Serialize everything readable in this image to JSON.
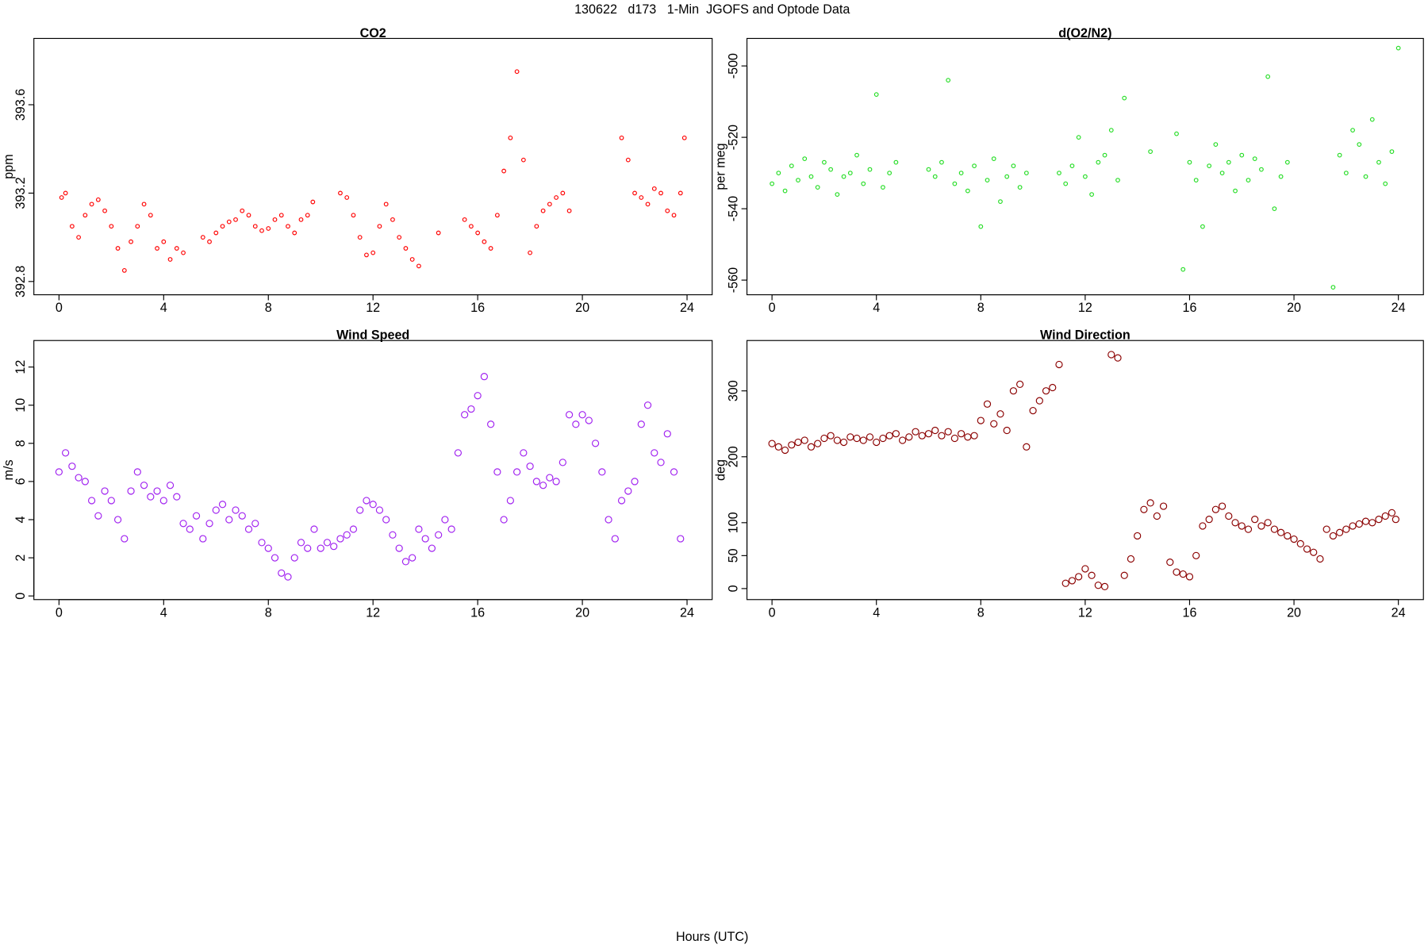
{
  "title": "130622   d173   1-Min  JGOFS and Optode Data",
  "x_label": "Hours (UTC)",
  "chart_data": [
    {
      "type": "scatter",
      "title": "CO2",
      "y_label": "ppm",
      "color": "#ff0000",
      "marker_size": 2,
      "xlim": [
        -0.96,
        24.96
      ],
      "xticks": [
        0,
        4,
        8,
        12,
        16,
        20,
        24
      ],
      "ylim": [
        392.74,
        393.9
      ],
      "yticks": [
        392.8,
        393.2,
        393.6
      ],
      "x": [
        0.1,
        0.25,
        0.5,
        0.75,
        1,
        1.25,
        1.5,
        1.75,
        2,
        2.25,
        2.5,
        2.75,
        3,
        3.25,
        3.5,
        3.75,
        4,
        4.25,
        4.5,
        4.75,
        5.5,
        5.75,
        6,
        6.25,
        6.5,
        6.75,
        7,
        7.25,
        7.5,
        7.75,
        8,
        8.25,
        8.5,
        8.75,
        9,
        9.25,
        9.5,
        9.7,
        10.75,
        11,
        11.25,
        11.5,
        11.75,
        12,
        12.25,
        12.5,
        12.75,
        13,
        13.25,
        13.5,
        13.75,
        14.5,
        15.5,
        15.75,
        16,
        16.25,
        16.5,
        16.75,
        17,
        17.25,
        17.5,
        17.75,
        18,
        18.25,
        18.5,
        18.75,
        19,
        19.25,
        19.5,
        21.5,
        21.75,
        22,
        22.25,
        22.5,
        22.75,
        23,
        23.25,
        23.5,
        23.75,
        23.9
      ],
      "y": [
        393.18,
        393.2,
        393.05,
        393.0,
        393.1,
        393.15,
        393.17,
        393.12,
        393.05,
        392.95,
        392.85,
        392.98,
        393.05,
        393.15,
        393.1,
        392.95,
        392.98,
        392.9,
        392.95,
        392.93,
        393.0,
        392.98,
        393.02,
        393.05,
        393.07,
        393.08,
        393.12,
        393.1,
        393.05,
        393.03,
        393.04,
        393.08,
        393.1,
        393.05,
        393.02,
        393.08,
        393.1,
        393.16,
        393.2,
        393.18,
        393.1,
        393.0,
        392.92,
        392.93,
        393.05,
        393.15,
        393.08,
        393.0,
        392.95,
        392.9,
        392.87,
        393.02,
        393.08,
        393.05,
        393.02,
        392.98,
        392.95,
        393.1,
        393.3,
        393.45,
        393.75,
        393.35,
        392.93,
        393.05,
        393.12,
        393.15,
        393.18,
        393.2,
        393.12,
        393.45,
        393.35,
        393.2,
        393.18,
        393.15,
        393.22,
        393.2,
        393.12,
        393.1,
        393.2,
        393.45
      ]
    },
    {
      "type": "scatter",
      "title": "d(O2/N2)",
      "y_label": "per meg",
      "color": "#22dd22",
      "marker_size": 2,
      "xlim": [
        -0.96,
        24.96
      ],
      "xticks": [
        0,
        4,
        8,
        12,
        16,
        20,
        24
      ],
      "ylim": [
        -564.1,
        -492.3
      ],
      "yticks": [
        -500,
        -520,
        -540,
        -560
      ],
      "x": [
        0,
        0.25,
        0.5,
        0.75,
        1,
        1.25,
        1.5,
        1.75,
        2,
        2.25,
        2.5,
        2.75,
        3,
        3.25,
        3.5,
        3.75,
        4,
        4.25,
        4.5,
        4.75,
        6,
        6.25,
        6.5,
        6.75,
        7,
        7.25,
        7.5,
        7.75,
        8,
        8.25,
        8.5,
        8.75,
        9,
        9.25,
        9.5,
        9.75,
        11,
        11.25,
        11.5,
        11.75,
        12,
        12.25,
        12.5,
        12.75,
        13,
        13.25,
        13.5,
        14.5,
        15.5,
        15.75,
        16,
        16.25,
        16.5,
        16.75,
        17,
        17.25,
        17.5,
        17.75,
        18,
        18.25,
        18.5,
        18.75,
        19,
        19.25,
        19.5,
        19.75,
        21.5,
        21.75,
        22,
        22.25,
        22.5,
        22.75,
        23,
        23.25,
        23.5,
        23.75,
        24
      ],
      "y": [
        -533,
        -530,
        -535,
        -528,
        -532,
        -526,
        -531,
        -534,
        -527,
        -529,
        -536,
        -531,
        -530,
        -525,
        -533,
        -529,
        -508,
        -534,
        -530,
        -527,
        -529,
        -531,
        -527,
        -504,
        -533,
        -530,
        -535,
        -528,
        -545,
        -532,
        -526,
        -538,
        -531,
        -528,
        -534,
        -530,
        -530,
        -533,
        -528,
        -520,
        -531,
        -536,
        -527,
        -525,
        -518,
        -532,
        -509,
        -524,
        -519,
        -557,
        -527,
        -532,
        -545,
        -528,
        -522,
        -530,
        -527,
        -535,
        -525,
        -532,
        -526,
        -529,
        -503,
        -540,
        -531,
        -527,
        -562,
        -525,
        -530,
        -518,
        -522,
        -531,
        -515,
        -527,
        -533,
        -524,
        -495
      ]
    },
    {
      "type": "scatter",
      "title": "Wind Speed",
      "y_label": "m/s",
      "color": "#a020f0",
      "marker_size": 3.5,
      "xlim": [
        -0.96,
        24.96
      ],
      "xticks": [
        0,
        4,
        8,
        12,
        16,
        20,
        24
      ],
      "ylim": [
        -0.19,
        13.39
      ],
      "yticks": [
        0,
        2,
        4,
        6,
        8,
        10,
        12
      ],
      "x": [
        0,
        0.25,
        0.5,
        0.75,
        1,
        1.25,
        1.5,
        1.75,
        2,
        2.25,
        2.5,
        2.75,
        3,
        3.25,
        3.5,
        3.75,
        4,
        4.25,
        4.5,
        4.75,
        5,
        5.25,
        5.5,
        5.75,
        6,
        6.25,
        6.5,
        6.75,
        7,
        7.25,
        7.5,
        7.75,
        8,
        8.25,
        8.5,
        8.75,
        9,
        9.25,
        9.5,
        9.75,
        10,
        10.25,
        10.5,
        10.75,
        11,
        11.25,
        11.5,
        11.75,
        12,
        12.25,
        12.5,
        12.75,
        13,
        13.25,
        13.5,
        13.75,
        14,
        14.25,
        14.5,
        14.75,
        15,
        15.25,
        15.5,
        15.75,
        16,
        16.25,
        16.5,
        16.75,
        17,
        17.25,
        17.5,
        17.75,
        18,
        18.25,
        18.5,
        18.75,
        19,
        19.25,
        19.5,
        19.75,
        20,
        20.25,
        20.5,
        20.75,
        21,
        21.25,
        21.5,
        21.75,
        22,
        22.25,
        22.5,
        22.75,
        23,
        23.25,
        23.5,
        23.75
      ],
      "y": [
        6.5,
        7.5,
        6.8,
        6.2,
        6.0,
        5.0,
        4.2,
        5.5,
        5.0,
        4.0,
        3.0,
        5.5,
        6.5,
        5.8,
        5.2,
        5.5,
        5.0,
        5.8,
        5.2,
        3.8,
        3.5,
        4.2,
        3.0,
        3.8,
        4.5,
        4.8,
        4.0,
        4.5,
        4.2,
        3.5,
        3.8,
        2.8,
        2.5,
        2.0,
        1.2,
        1.0,
        2.0,
        2.8,
        2.5,
        3.5,
        2.5,
        2.8,
        2.6,
        3.0,
        3.2,
        3.5,
        4.5,
        5.0,
        4.8,
        4.5,
        4.0,
        3.2,
        2.5,
        1.8,
        2.0,
        3.5,
        3.0,
        2.5,
        3.2,
        4.0,
        3.5,
        7.5,
        9.5,
        9.8,
        10.5,
        11.5,
        9.0,
        6.5,
        4.0,
        5.0,
        6.5,
        7.5,
        6.8,
        6.0,
        5.8,
        6.2,
        6.0,
        7.0,
        9.5,
        9.0,
        9.5,
        9.2,
        8.0,
        6.5,
        4.0,
        3.0,
        5.0,
        5.5,
        6.0,
        9.0,
        10.0,
        7.5,
        7.0,
        8.5,
        6.5,
        3.0
      ]
    },
    {
      "type": "scatter",
      "title": "Wind Direction",
      "y_label": "deg",
      "color": "#8b0000",
      "marker_size": 3.5,
      "xlim": [
        -0.96,
        24.96
      ],
      "xticks": [
        0,
        4,
        8,
        12,
        16,
        20,
        24
      ],
      "ylim": [
        -16.7,
        376.4
      ],
      "yticks": [
        0,
        50,
        100,
        200,
        300
      ],
      "x": [
        0,
        0.25,
        0.5,
        0.75,
        1,
        1.25,
        1.5,
        1.75,
        2,
        2.25,
        2.5,
        2.75,
        3,
        3.25,
        3.5,
        3.75,
        4,
        4.25,
        4.5,
        4.75,
        5,
        5.25,
        5.5,
        5.75,
        6,
        6.25,
        6.5,
        6.75,
        7,
        7.25,
        7.5,
        7.75,
        8,
        8.25,
        8.5,
        8.75,
        9,
        9.25,
        9.5,
        9.75,
        10,
        10.25,
        10.5,
        10.75,
        11,
        11.25,
        11.5,
        11.75,
        12,
        12.25,
        12.5,
        12.75,
        13,
        13.25,
        13.5,
        13.75,
        14,
        14.25,
        14.5,
        14.75,
        15,
        15.25,
        15.5,
        15.75,
        16,
        16.25,
        16.5,
        16.75,
        17,
        17.25,
        17.5,
        17.75,
        18,
        18.25,
        18.5,
        18.75,
        19,
        19.25,
        19.5,
        19.75,
        20,
        20.25,
        20.5,
        20.75,
        21,
        21.25,
        21.5,
        21.75,
        22,
        22.25,
        22.5,
        22.75,
        23,
        23.25,
        23.5,
        23.75,
        23.9
      ],
      "y": [
        220,
        215,
        210,
        218,
        222,
        225,
        215,
        220,
        228,
        232,
        225,
        222,
        230,
        228,
        225,
        230,
        222,
        228,
        232,
        235,
        225,
        230,
        238,
        232,
        235,
        240,
        232,
        238,
        228,
        235,
        230,
        232,
        255,
        280,
        250,
        265,
        240,
        300,
        310,
        215,
        270,
        285,
        300,
        305,
        340,
        8,
        12,
        18,
        30,
        20,
        5,
        3,
        355,
        350,
        20,
        45,
        80,
        120,
        130,
        110,
        125,
        40,
        25,
        22,
        18,
        50,
        95,
        105,
        120,
        125,
        110,
        100,
        95,
        90,
        105,
        95,
        100,
        90,
        85,
        80,
        75,
        68,
        60,
        55,
        45,
        90,
        80,
        85,
        90,
        95,
        98,
        102,
        100,
        105,
        110,
        115,
        105
      ]
    }
  ]
}
